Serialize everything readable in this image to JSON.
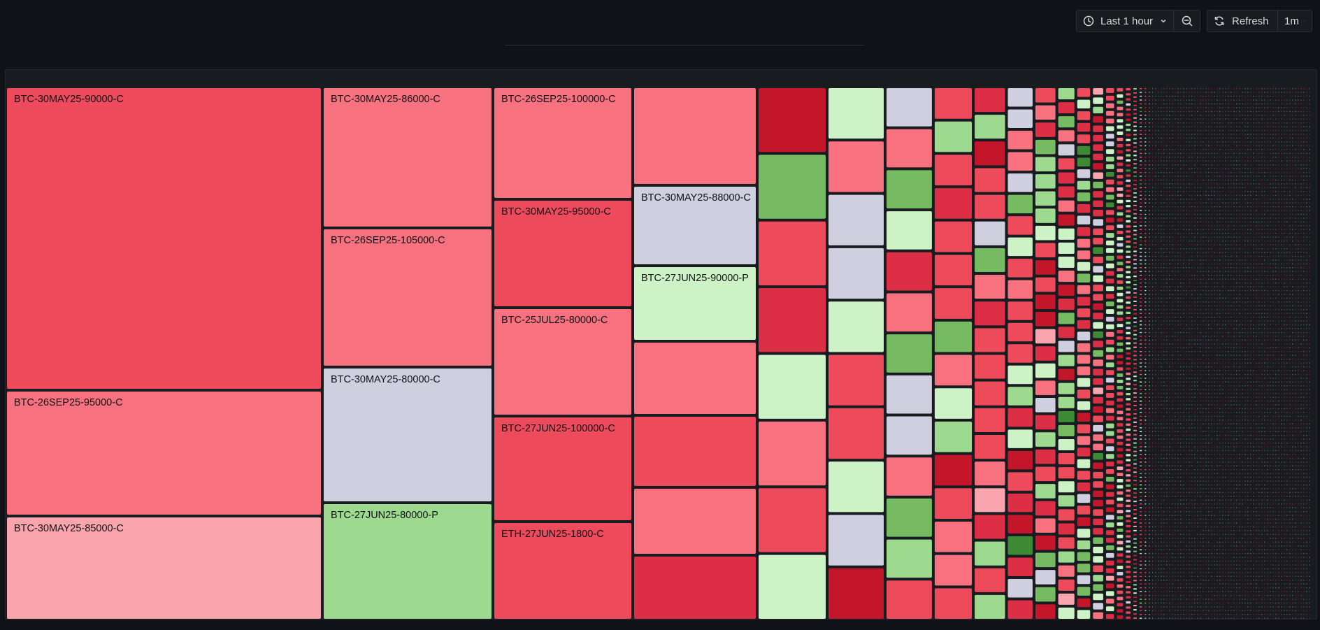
{
  "toolbar": {
    "time_range_label": "Last 1 hour",
    "refresh_label": "Refresh",
    "refresh_interval": "1m"
  },
  "palette": {
    "dark_red": "#c4162a",
    "red": "#dc2e44",
    "mid_red": "#ed4a5b",
    "light_red": "#f7717f",
    "pale_red": "#faa5ad",
    "neutral": "#cfcfdf",
    "pale_green": "#ccf2c5",
    "light_green": "#9dda8f",
    "green": "#76bb62",
    "dark_green": "#3e8a34"
  },
  "chart_data": {
    "type": "treemap",
    "title": "",
    "cells": [
      {
        "label": "BTC-30MAY25-90000-C",
        "color": "mid_red"
      },
      {
        "label": "BTC-26SEP25-95000-C",
        "color": "light_red"
      },
      {
        "label": "BTC-30MAY25-85000-C",
        "color": "pale_red"
      },
      {
        "label": "BTC-30MAY25-86000-C",
        "color": "light_red"
      },
      {
        "label": "BTC-26SEP25-105000-C",
        "color": "light_red"
      },
      {
        "label": "BTC-30MAY25-80000-C",
        "color": "neutral"
      },
      {
        "label": "BTC-27JUN25-80000-P",
        "color": "light_green"
      },
      {
        "label": "BTC-26SEP25-100000-C",
        "color": "light_red"
      },
      {
        "label": "BTC-30MAY25-95000-C",
        "color": "mid_red"
      },
      {
        "label": "BTC-25JUL25-80000-C",
        "color": "light_red"
      },
      {
        "label": "BTC-27JUN25-100000-C",
        "color": "mid_red"
      },
      {
        "label": "ETH-27JUN25-1800-C",
        "color": "mid_red"
      },
      {
        "label": "",
        "color": "light_red"
      },
      {
        "label": "BTC-30MAY25-88000-C",
        "color": "neutral"
      },
      {
        "label": "BTC-27JUN25-90000-P",
        "color": "pale_green"
      },
      {
        "label": "",
        "color": "light_red"
      },
      {
        "label": "",
        "color": "mid_red"
      },
      {
        "label": "",
        "color": "light_red"
      },
      {
        "label": "",
        "color": "red"
      }
    ]
  }
}
